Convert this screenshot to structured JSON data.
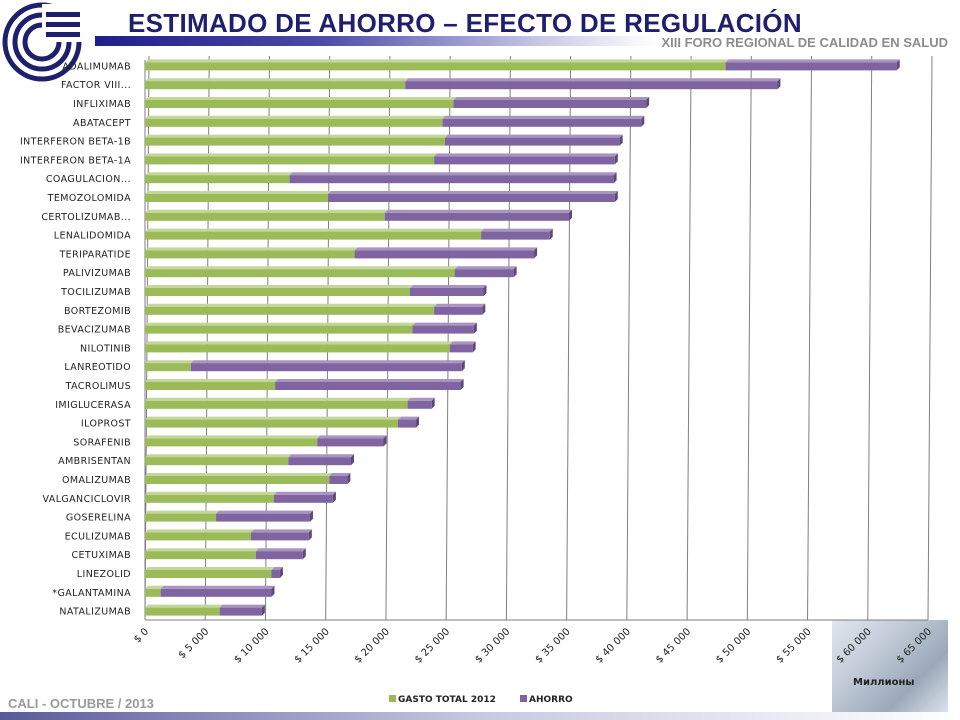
{
  "header": {
    "title": "ESTIMADO DE AHORRO – EFECTO DE REGULACIÓN",
    "subtitle": "XIII FORO REGIONAL DE CALIDAD EN SALUD"
  },
  "footer": {
    "left_text": "CALI - OCTUBRE  / 2013",
    "unit_label": "Миллионы"
  },
  "colors": {
    "gasto": "#9bbb59",
    "ahorro": "#8064a2",
    "title": "#1f1f6e"
  },
  "chart_data": {
    "type": "bar",
    "orientation": "horizontal",
    "stacked": true,
    "categories": [
      "ADALIMUMAB",
      "FACTOR VIII...",
      "INFLIXIMAB",
      "ABATACEPT",
      "INTERFERON BETA-1B",
      "INTERFERON BETA-1A",
      "COAGULACION...",
      "TEMOZOLOMIDA",
      "CERTOLIZUMAB...",
      "LENALIDOMIDA",
      "TERIPARATIDE",
      "PALIVIZUMAB",
      "TOCILIZUMAB",
      "BORTEZOMIB",
      "BEVACIZUMAB",
      "NILOTINIB",
      "LANREOTIDO",
      "TACROLIMUS",
      "IMIGLUCERASA",
      "ILOPROST",
      "SORAFENIB",
      "AMBRISENTAN",
      "OMALIZUMAB",
      "VALGANCICLOVIR",
      "GOSERELINA",
      "ECULIZUMAB",
      "CETUXIMAB",
      "LINEZOLID",
      "*GALANTAMINA",
      "NATALIZUMAB"
    ],
    "series": [
      {
        "name": "GASTO TOTAL 2012",
        "values": [
          48200,
          21600,
          25600,
          24700,
          24900,
          24000,
          12000,
          15200,
          19900,
          27900,
          17400,
          25700,
          22000,
          24000,
          22200,
          25300,
          3800,
          10800,
          21800,
          21000,
          14300,
          11900,
          15300,
          10700,
          5900,
          8800,
          9200,
          10500,
          1300,
          6200
        ]
      },
      {
        "name": "AHORRO",
        "values": [
          14200,
          30900,
          16000,
          16500,
          14500,
          15000,
          26900,
          23800,
          15300,
          5700,
          14900,
          4900,
          6100,
          4000,
          5100,
          1900,
          22500,
          15400,
          2000,
          1500,
          5500,
          5200,
          1500,
          4900,
          7800,
          4800,
          3900,
          700,
          9200,
          3500
        ]
      }
    ],
    "xlim": [
      0,
      65000
    ],
    "xticks": [
      "$ 0",
      "$ 5 000",
      "$ 10 000",
      "$ 15 000",
      "$ 20 000",
      "$ 25 000",
      "$ 30 000",
      "$ 35 000",
      "$ 40 000",
      "$ 45 000",
      "$ 50 000",
      "$ 55 000",
      "$ 60 000",
      "$ 65 000"
    ],
    "grid": true,
    "legend_position": "bottom"
  }
}
